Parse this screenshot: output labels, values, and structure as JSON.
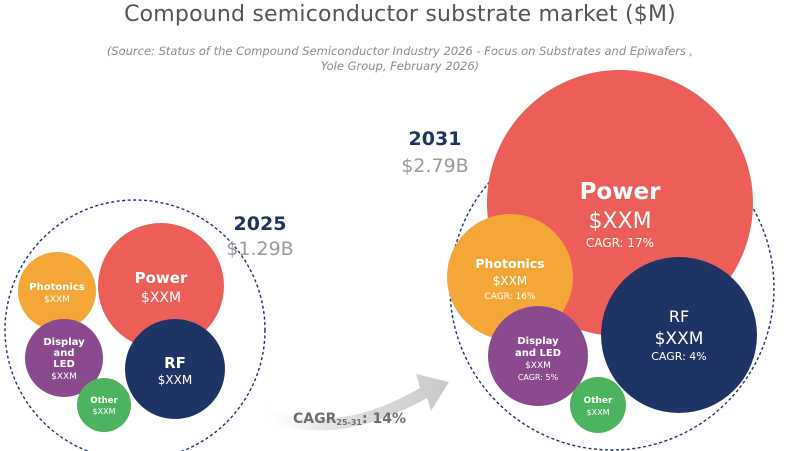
{
  "title": "Compound semiconductor substrate market ($M)",
  "source_line1": "(Source: Status of the Compound Semiconductor Industry 2026 - Focus on Substrates and Epiwafers ,",
  "source_line2": "Yole Group, February 2026)",
  "chart_data": {
    "type": "bubble",
    "title": "Compound semiconductor substrate market ($M)",
    "growth": {
      "label": "CAGR",
      "subscript": "25-31",
      "value": ": 14%"
    },
    "years": [
      {
        "year": "2025",
        "total": "$1.29B",
        "segments": [
          {
            "name": "Power",
            "value": "$XXM",
            "color": "#ec5f59"
          },
          {
            "name": "RF",
            "value": "$XXM",
            "color": "#1f3464"
          },
          {
            "name": "Photonics",
            "value": "$XXM",
            "color": "#f4a638"
          },
          {
            "name": "Display and LED",
            "name_lines": [
              "Display",
              "and",
              "LED"
            ],
            "value": "$XXM",
            "color": "#8b4a8f"
          },
          {
            "name": "Other",
            "value": "$XXM",
            "color": "#4db35e"
          }
        ]
      },
      {
        "year": "2031",
        "total": "$2.79B",
        "segments": [
          {
            "name": "Power",
            "value": "$XXM",
            "cagr": "CAGR: 17%",
            "color": "#ec5f59"
          },
          {
            "name": "RF",
            "value": "$XXM",
            "cagr": "CAGR: 4%",
            "color": "#1f3464"
          },
          {
            "name": "Photonics",
            "value": "$XXM",
            "cagr": "CAGR: 16%",
            "color": "#f4a638"
          },
          {
            "name": "Display and LED",
            "name_lines": [
              "Display",
              "and LED"
            ],
            "value": "$XXM",
            "cagr": "CAGR: 5%",
            "color": "#8b4a8f"
          },
          {
            "name": "Other",
            "value": "$XXM",
            "color": "#4db35e"
          }
        ]
      }
    ]
  }
}
